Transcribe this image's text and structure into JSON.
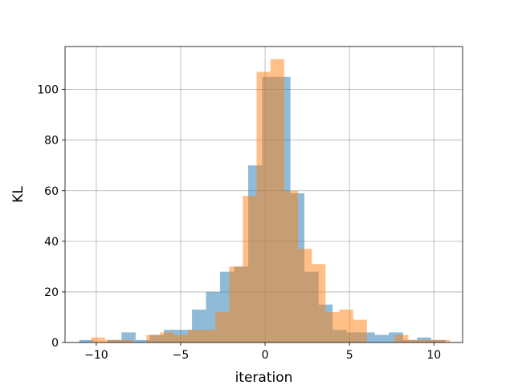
{
  "chart_data": {
    "type": "histogram",
    "title": "",
    "xlabel": "iteration",
    "ylabel": "KL",
    "xlim": [
      -11.85,
      11.7
    ],
    "ylim": [
      0,
      117
    ],
    "xticks": [
      -10,
      -5,
      0,
      5,
      10
    ],
    "xtick_labels": [
      "−10",
      "−5",
      "0",
      "5",
      "10"
    ],
    "yticks": [
      0,
      20,
      40,
      60,
      80,
      100
    ],
    "ytick_labels": [
      "0",
      "20",
      "40",
      "60",
      "80",
      "100"
    ],
    "grid": true,
    "series": [
      {
        "color": "#1f77b4",
        "alpha": 0.5,
        "bin_edges": [
          -11.0,
          -10.17,
          -9.33,
          -8.5,
          -7.67,
          -6.83,
          -6.0,
          -5.17,
          -4.33,
          -3.5,
          -2.67,
          -1.83,
          -1.0,
          -0.17,
          0.67,
          1.5,
          2.33,
          3.17,
          4.0,
          4.83,
          5.67,
          6.5,
          7.33,
          8.17,
          9.0,
          9.83,
          10.67
        ],
        "counts": [
          1,
          0,
          1,
          4,
          1,
          3,
          5,
          5,
          13,
          20,
          28,
          30,
          70,
          105,
          105,
          59,
          28,
          15,
          5,
          4,
          4,
          3,
          4,
          1,
          2,
          1
        ]
      },
      {
        "color": "#ff7f0e",
        "alpha": 0.5,
        "bin_edges": [
          -10.3,
          -9.48,
          -8.67,
          -7.85,
          -7.03,
          -6.22,
          -5.4,
          -4.58,
          -3.77,
          -2.95,
          -2.13,
          -1.32,
          -0.5,
          0.32,
          1.13,
          1.95,
          2.77,
          3.58,
          4.4,
          5.22,
          6.03,
          6.85,
          7.67,
          8.48,
          9.3,
          10.12,
          10.93
        ],
        "counts": [
          2,
          1,
          1,
          0,
          3,
          4,
          3,
          5,
          5,
          12,
          30,
          58,
          107,
          112,
          60,
          37,
          31,
          12,
          13,
          9,
          0,
          0,
          3,
          1,
          1,
          1
        ]
      }
    ]
  }
}
